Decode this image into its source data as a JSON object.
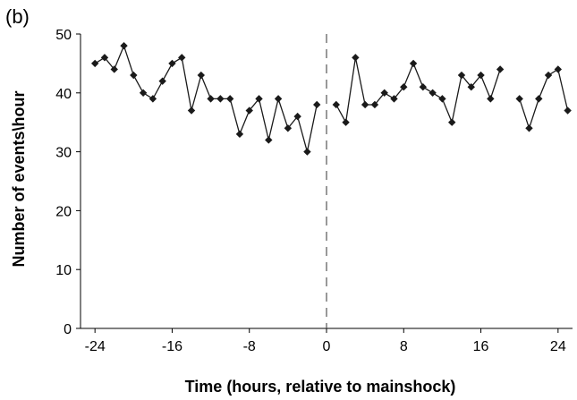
{
  "panel_label": "(b)",
  "chart_data": {
    "type": "line",
    "title": "",
    "xlabel": "Time (hours, relative to mainshock)",
    "ylabel": "Number of events\\hour",
    "xlim": [
      -25.5,
      25.5
    ],
    "ylim": [
      0,
      50
    ],
    "xticks": [
      -24,
      -16,
      -8,
      0,
      8,
      16,
      24
    ],
    "yticks": [
      0,
      10,
      20,
      30,
      40,
      50
    ],
    "grid": false,
    "legend": "none",
    "marker": "diamond",
    "colors": {
      "line": "#1a1a1a",
      "marker": "#1a1a1a",
      "axis": "#000000",
      "mainshock_line": "#555555"
    },
    "reference_line": {
      "x": 0,
      "style": "dashed"
    },
    "series": [
      {
        "x": [
          -24,
          -23,
          -22,
          -21,
          -20,
          -19,
          -18,
          -17,
          -16,
          -15,
          -14,
          -13,
          -12,
          -11,
          -10,
          -9,
          -8,
          -7,
          -6,
          -5,
          -4,
          -3,
          -2,
          -1
        ],
        "values": [
          45,
          46,
          44,
          48,
          43,
          40,
          39,
          42,
          45,
          46,
          37,
          43,
          39,
          39,
          39,
          33,
          37,
          39,
          32,
          39,
          34,
          36,
          30,
          38
        ]
      },
      {
        "x": [
          1,
          2,
          3,
          4,
          5,
          6,
          7,
          8,
          9,
          10,
          11,
          12,
          13,
          14,
          15,
          16,
          17,
          18
        ],
        "values": [
          38,
          35,
          46,
          38,
          38,
          40,
          39,
          41,
          45,
          41,
          40,
          39,
          35,
          43,
          41,
          43,
          39,
          44
        ]
      },
      {
        "x": [
          20,
          21,
          22,
          23,
          24,
          25
        ],
        "values": [
          39,
          34,
          39,
          43,
          44,
          37
        ]
      }
    ]
  }
}
